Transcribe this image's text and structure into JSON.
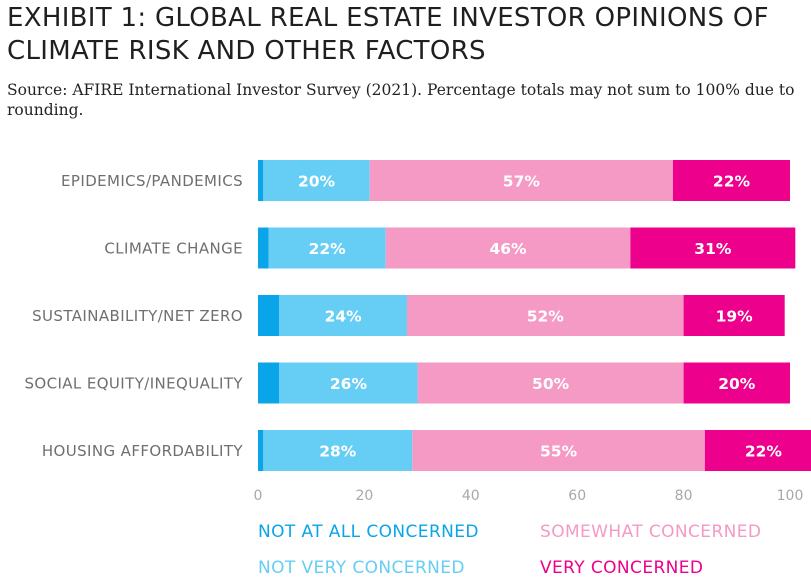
{
  "title": "EXHIBIT 1: GLOBAL REAL ESTATE INVESTOR OPINIONS OF CLIMATE RISK AND OTHER FACTORS",
  "source_note": "Source: AFIRE International Investor Survey (2021). Percentage totals may not sum to 100% due to rounding.",
  "chart_data": {
    "type": "bar",
    "orientation": "horizontal",
    "stacked": true,
    "categories": [
      "EPIDEMICS/PANDEMICS",
      "CLIMATE CHANGE",
      "SUSTAINABILITY/NET ZERO",
      "SOCIAL EQUITY/INEQUALITY",
      "HOUSING AFFORDABILITY"
    ],
    "series": [
      {
        "name": "NOT AT ALL CONCERNED",
        "color": "#0aa5e8",
        "values": [
          1,
          2,
          4,
          4,
          1
        ],
        "labels": [
          "",
          "",
          "",
          "",
          ""
        ]
      },
      {
        "name": "NOT VERY CONCERNED",
        "color": "#66cdf4",
        "values": [
          20,
          22,
          24,
          26,
          28
        ],
        "labels": [
          "20%",
          "22%",
          "24%",
          "26%",
          "28%"
        ]
      },
      {
        "name": "SOMEWHAT CONCERNED",
        "color": "#f49ac4",
        "values": [
          57,
          46,
          52,
          50,
          55
        ],
        "labels": [
          "57%",
          "46%",
          "52%",
          "50%",
          "55%"
        ]
      },
      {
        "name": "VERY CONCERNED",
        "color": "#ec008c",
        "values": [
          22,
          31,
          19,
          20,
          22
        ],
        "labels": [
          "22%",
          "31%",
          "19%",
          "20%",
          "22%"
        ]
      }
    ],
    "xlim": [
      0,
      100
    ],
    "xticks": [
      0,
      20,
      40,
      60,
      80,
      100
    ],
    "grid": false,
    "legend_position": "bottom"
  }
}
